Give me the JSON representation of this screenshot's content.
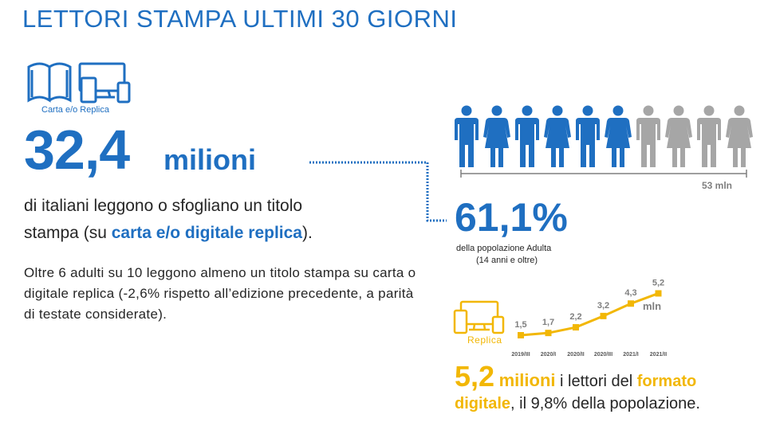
{
  "title": "LETTORI  STAMPA ULTIMI 30 GIORNI",
  "left": {
    "icon_label": "Carta e/o Replica",
    "big_number": "32,4",
    "big_unit": "milioni",
    "desc_part1": "di italiani leggono o sfogliano un titolo",
    "desc_part2": "stampa (su ",
    "desc_highlight": "carta e/o digitale replica",
    "desc_part3": ").",
    "paragraph": "Oltre 6 adulti su 10 leggono almeno un titolo stampa su carta o digitale replica (-2,6% rispetto all’edizione precedente, a parità di testate considerate)."
  },
  "right": {
    "population_total": "53 mln",
    "percent": "61,1%",
    "percent_sub1": "della popolazione Adulta",
    "percent_sub2": "(14 anni e oltre)",
    "replica_label": "Replica",
    "digital_big": "5,2",
    "digital_unit": "milioni",
    "digital_text1": " i lettori del ",
    "digital_hl1": "formato",
    "digital_hl2": "digitale",
    "digital_text2": ", il 9,8% della popolazione."
  },
  "colors": {
    "blue": "#1f6fc1",
    "gold": "#f2b705",
    "grey": "#a6a6a6",
    "text": "#262626"
  },
  "people": {
    "count": 10,
    "blue_fraction": 0.611
  },
  "chart_data": {
    "type": "line",
    "x": [
      "2019/III",
      "2020/I",
      "2020/II",
      "2020/III",
      "2021/I",
      "2021/II"
    ],
    "series": [
      {
        "values": [
          1.5,
          1.7,
          2.2,
          3.2,
          4.3,
          5.2
        ]
      }
    ],
    "value_labels": [
      "1,5",
      "1,7",
      "2,2",
      "3,2",
      "4,3",
      "5,2"
    ],
    "unit_label": "mln",
    "color": "#f2b705"
  }
}
